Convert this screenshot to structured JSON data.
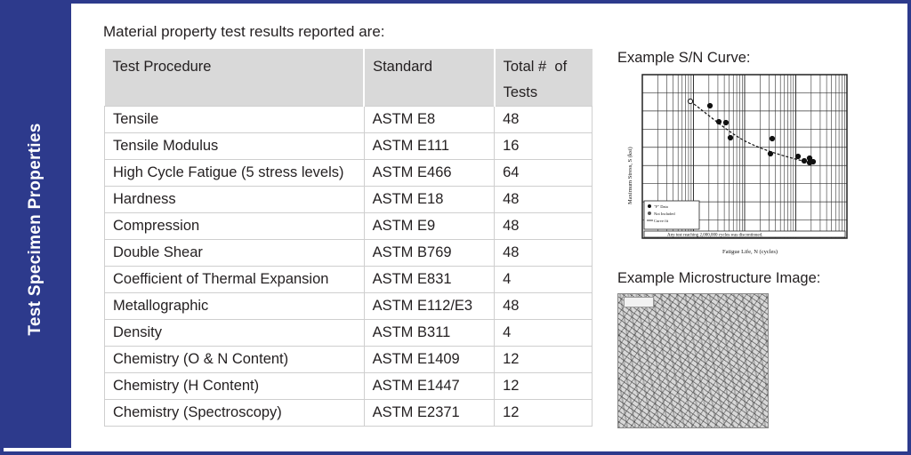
{
  "sidebar": {
    "title": "Test Specimen Properties"
  },
  "intro": "Material property test results reported are:",
  "table": {
    "headers": [
      "Test Procedure",
      "Standard",
      "Total #  of Tests"
    ],
    "rows": [
      [
        "Tensile",
        "ASTM E8",
        "48"
      ],
      [
        "Tensile Modulus",
        "ASTM E111",
        "16"
      ],
      [
        "High Cycle Fatigue (5 stress levels)",
        "ASTM E466",
        "64"
      ],
      [
        "Hardness",
        "ASTM E18",
        "48"
      ],
      [
        "Compression",
        "ASTM E9",
        "48"
      ],
      [
        "Double Shear",
        "ASTM B769",
        "48"
      ],
      [
        "Coefficient of Thermal Expansion",
        "ASTM E831",
        "4"
      ],
      [
        "Metallographic",
        "ASTM E112/E3",
        "48"
      ],
      [
        "Density",
        "ASTM B311",
        "4"
      ],
      [
        "Chemistry (O & N Content)",
        "ASTM E1409",
        "12"
      ],
      [
        "Chemistry (H Content)",
        "ASTM E1447",
        "12"
      ],
      [
        "Chemistry (Spectroscopy)",
        "ASTM E2371",
        "12"
      ]
    ]
  },
  "sn_curve": {
    "label": "Example S/N Curve:",
    "xlabel": "Fatigue Life, N (cycles)",
    "ylabel": "Maximum Stress, S (ksi)",
    "legend": [
      "\"F\" Data",
      "Not Included",
      "Curve fit"
    ],
    "note": "Any test reaching 2,000,000 cycles was discontinued."
  },
  "microstructure": {
    "label": "Example Microstructure Image:"
  },
  "colors": {
    "brand": "#2d3a8c",
    "header_bg": "#d9d9d9"
  }
}
